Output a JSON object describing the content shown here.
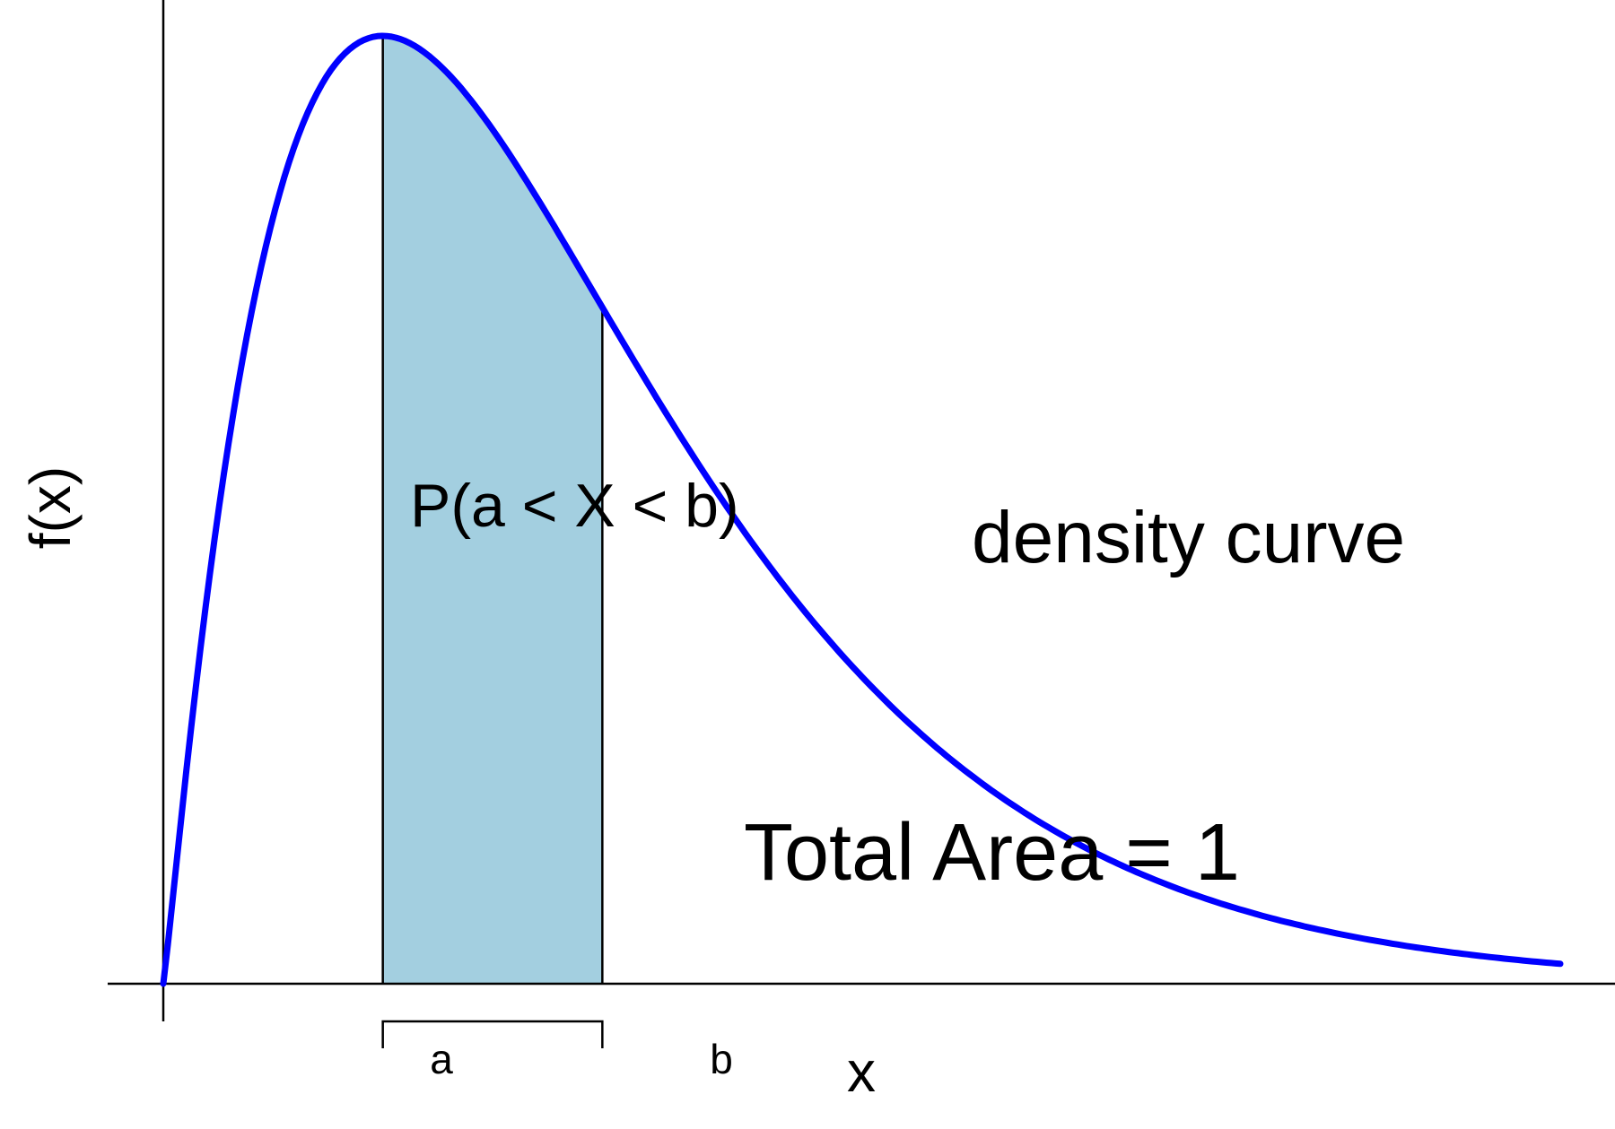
{
  "chart_data": {
    "type": "area",
    "title": "",
    "xlabel": "x",
    "ylabel": "f(x)",
    "curve_shape": "right-skewed gamma-like density",
    "shape_k": 2.1,
    "x_range": [
      0,
      7
    ],
    "y_range": [
      0,
      1
    ],
    "mode_x": 1.1,
    "a": 1.1,
    "b": 2.2,
    "tick_labels": [
      "a",
      "b"
    ],
    "grid": false,
    "annotations": {
      "probability": "P(a < X < b)",
      "curve": "density curve",
      "total_area": "Total Area = 1"
    },
    "colors": {
      "curve": "#0000ff",
      "fill": "#a3cfe0",
      "axis": "#000000"
    }
  }
}
